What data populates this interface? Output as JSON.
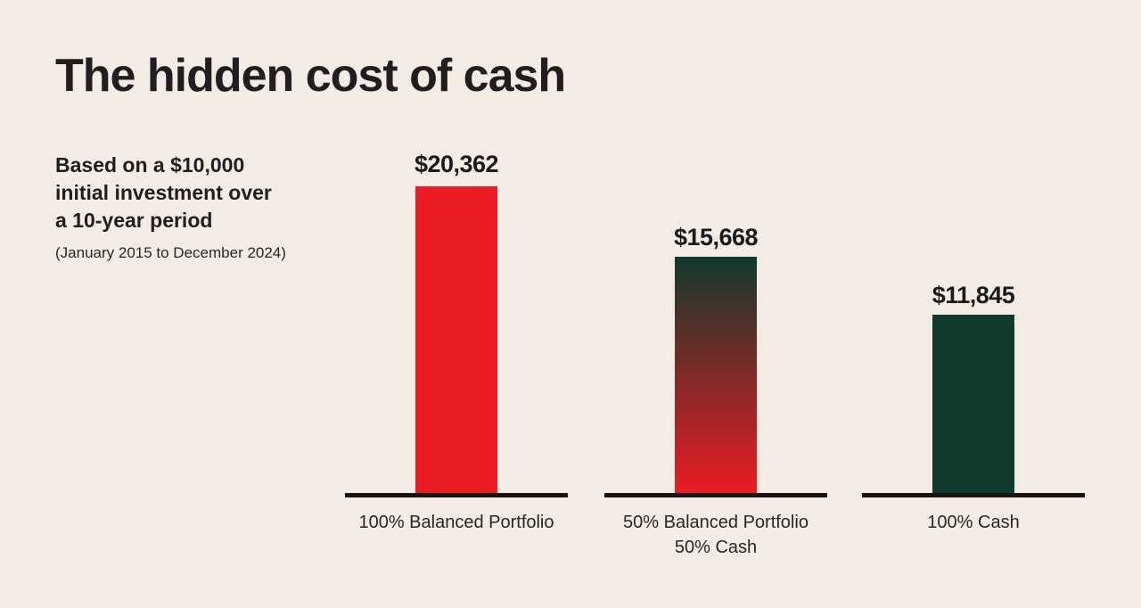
{
  "page": {
    "background_color": "#F3ECE5",
    "text_color": "#231F20"
  },
  "header": {
    "title": "The hidden cost of cash"
  },
  "subtitle": {
    "lines": [
      "Based on a $10,000",
      "initial investment over",
      "a 10-year period"
    ],
    "caption": "(January 2015 to December 2024)"
  },
  "colors": {
    "red_bar": "#EA1C24",
    "green_bar": "#0F3A2C",
    "gradient_top": "#12392C",
    "gradient_bottom": "#EA1C24",
    "baseline": "#1A1414",
    "background": "#F3ECE5"
  },
  "chart_data": {
    "type": "bar",
    "title": "The hidden cost of cash",
    "subtitle": "Based on a $10,000 initial investment over a 10-year period (January 2015 to December 2024)",
    "categories": [
      "100% Balanced Portfolio",
      "50% Balanced Portfolio 50% Cash",
      "100% Cash"
    ],
    "values": [
      20362,
      15668,
      11845
    ],
    "value_labels": [
      "$20,362",
      "$15,668",
      "$11,845"
    ],
    "xlabel": "",
    "ylabel": "",
    "ylim": [
      0,
      20362
    ],
    "grid": false,
    "legend": false,
    "bars": [
      {
        "value": 20362,
        "value_label": "$20,362",
        "fill": "solid-red",
        "category_line1": "100% Balanced Portfolio",
        "category_line2": ""
      },
      {
        "value": 15668,
        "value_label": "$15,668",
        "fill": "gradient-green-to-red",
        "category_line1": "50% Balanced Portfolio",
        "category_line2": "50% Cash"
      },
      {
        "value": 11845,
        "value_label": "$11,845",
        "fill": "solid-green",
        "category_line1": "100% Cash",
        "category_line2": ""
      }
    ]
  }
}
